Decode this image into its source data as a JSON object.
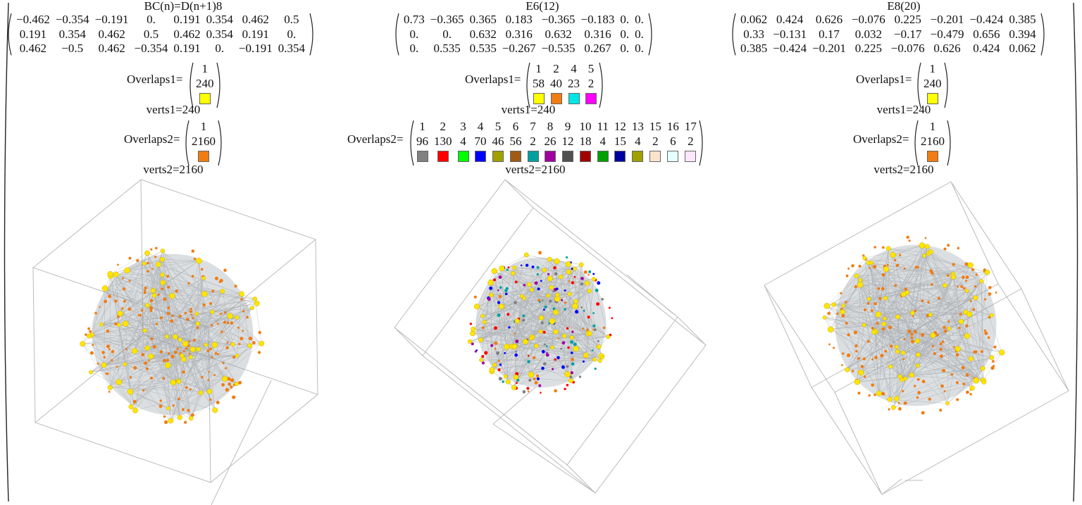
{
  "panels": [
    {
      "title": "BC(n)=D(n+1)8",
      "matrix": [
        [
          "−0.462",
          "−0.354",
          "−0.191",
          "0.",
          "0.191",
          "0.354",
          "0.462",
          "0.5"
        ],
        [
          "0.191",
          "0.354",
          "0.462",
          "0.5",
          "0.462",
          "0.354",
          "0.191",
          "0."
        ],
        [
          "0.462",
          "−0.5",
          "0.462",
          "−0.354",
          "0.191",
          "0.",
          "−0.191",
          "0.354"
        ]
      ],
      "overlaps1": {
        "label": "Overlaps1=",
        "ids": [
          "1"
        ],
        "counts": [
          "240"
        ],
        "colors": [
          "#ffff00"
        ]
      },
      "verts1": "verts1=240",
      "overlaps2": {
        "label": "Overlaps2=",
        "ids": [
          "1"
        ],
        "counts": [
          "2160"
        ],
        "colors": [
          "#f07c14"
        ]
      },
      "verts2": "verts2=2160"
    },
    {
      "title": "E6(12)",
      "matrix": [
        [
          "0.73",
          "−0.365",
          "0.365",
          "0.183",
          "−0.365",
          "−0.183",
          "0.",
          "0."
        ],
        [
          "0.",
          "0.",
          "0.632",
          "0.316",
          "0.632",
          "0.316",
          "0.",
          "0."
        ],
        [
          "0.",
          "0.535",
          "0.535",
          "−0.267",
          "−0.535",
          "0.267",
          "0.",
          "0."
        ]
      ],
      "overlaps1": {
        "label": "Overlaps1=",
        "ids": [
          "1",
          "2",
          "4",
          "5"
        ],
        "counts": [
          "58",
          "40",
          "23",
          "2"
        ],
        "colors": [
          "#ffff00",
          "#f07c14",
          "#00e6e6",
          "#ff00ff"
        ]
      },
      "verts1": "verts1=240",
      "overlaps2": {
        "label": "Overlaps2=",
        "ids": [
          "1",
          "2",
          "3",
          "4",
          "5",
          "6",
          "7",
          "8",
          "9",
          "10",
          "11",
          "12",
          "13",
          "15",
          "16",
          "17"
        ],
        "counts": [
          "96",
          "130",
          "4",
          "70",
          "46",
          "56",
          "2",
          "26",
          "12",
          "18",
          "4",
          "15",
          "4",
          "2",
          "6",
          "2"
        ],
        "colors": [
          "#808080",
          "#ff0000",
          "#00ff00",
          "#0000ff",
          "#a0a000",
          "#a05a14",
          "#00a0a0",
          "#a000a0",
          "#505050",
          "#a00000",
          "#00a000",
          "#0000a0",
          "#a0a000",
          "#fde3cc",
          "#e6ffff",
          "#ffe6ff"
        ]
      },
      "verts2": "verts2=2160"
    },
    {
      "title": "E8(20)",
      "matrix": [
        [
          "0.062",
          "0.424",
          "0.626",
          "−0.076",
          "0.225",
          "−0.201",
          "−0.424",
          "0.385"
        ],
        [
          "0.33",
          "−0.131",
          "0.17",
          "0.032",
          "−0.17",
          "−0.479",
          "0.656",
          "0.394"
        ],
        [
          "0.385",
          "−0.424",
          "−0.201",
          "0.225",
          "−0.076",
          "0.626",
          "0.424",
          "0.062"
        ]
      ],
      "overlaps1": {
        "label": "Overlaps1=",
        "ids": [
          "1"
        ],
        "counts": [
          "240"
        ],
        "colors": [
          "#ffff00"
        ]
      },
      "verts1": "verts1=240",
      "overlaps2": {
        "label": "Overlaps2=",
        "ids": [
          "1"
        ],
        "counts": [
          "2160"
        ],
        "colors": [
          "#f07c14"
        ]
      },
      "verts2": "verts2=2160"
    }
  ]
}
